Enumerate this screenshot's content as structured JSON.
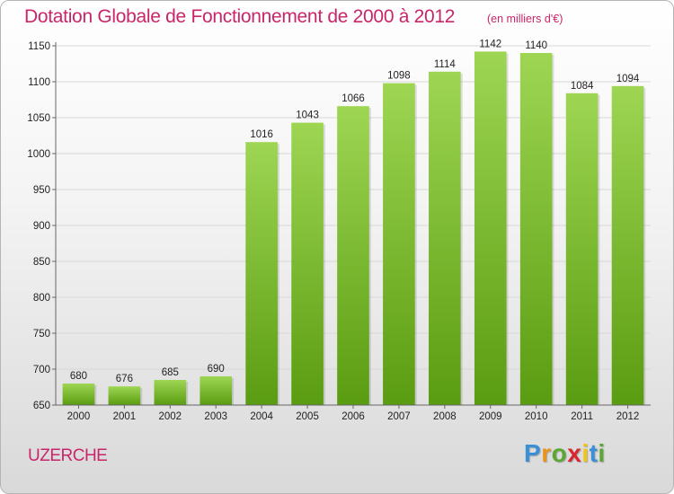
{
  "header": {
    "title": "Dotation Globale de Fonctionnement de 2000 à 2012",
    "unit": "(en milliers d'€)"
  },
  "footer": {
    "place": "UZERCHE",
    "brand": "Proxiti",
    "brand_letters": [
      "P",
      "r",
      "o",
      "x",
      "i",
      "t",
      "i"
    ],
    "brand_colors": [
      "#3a8fd6",
      "#e8941f",
      "#5aa832",
      "#d9262e",
      "#f2c418",
      "#3a8fd6",
      "#5aa832"
    ]
  },
  "colors": {
    "bar_top": "#9ed653",
    "bar_bottom": "#5a9c11",
    "grid": "#d8d8d8",
    "axis": "#666666"
  },
  "chart_data": {
    "type": "bar",
    "title": "Dotation Globale de Fonctionnement de 2000 à 2012",
    "ylabel": "(en milliers d'€)",
    "xlabel": "",
    "categories": [
      "2000",
      "2001",
      "2002",
      "2003",
      "2004",
      "2005",
      "2006",
      "2007",
      "2008",
      "2009",
      "2010",
      "2011",
      "2012"
    ],
    "values": [
      680,
      676,
      685,
      690,
      1016,
      1043,
      1066,
      1098,
      1114,
      1142,
      1140,
      1084,
      1094
    ],
    "ylim": [
      650,
      1150
    ],
    "yticks": [
      650,
      700,
      750,
      800,
      850,
      900,
      950,
      1000,
      1050,
      1100,
      1150
    ],
    "grid": true,
    "legend": "none"
  }
}
